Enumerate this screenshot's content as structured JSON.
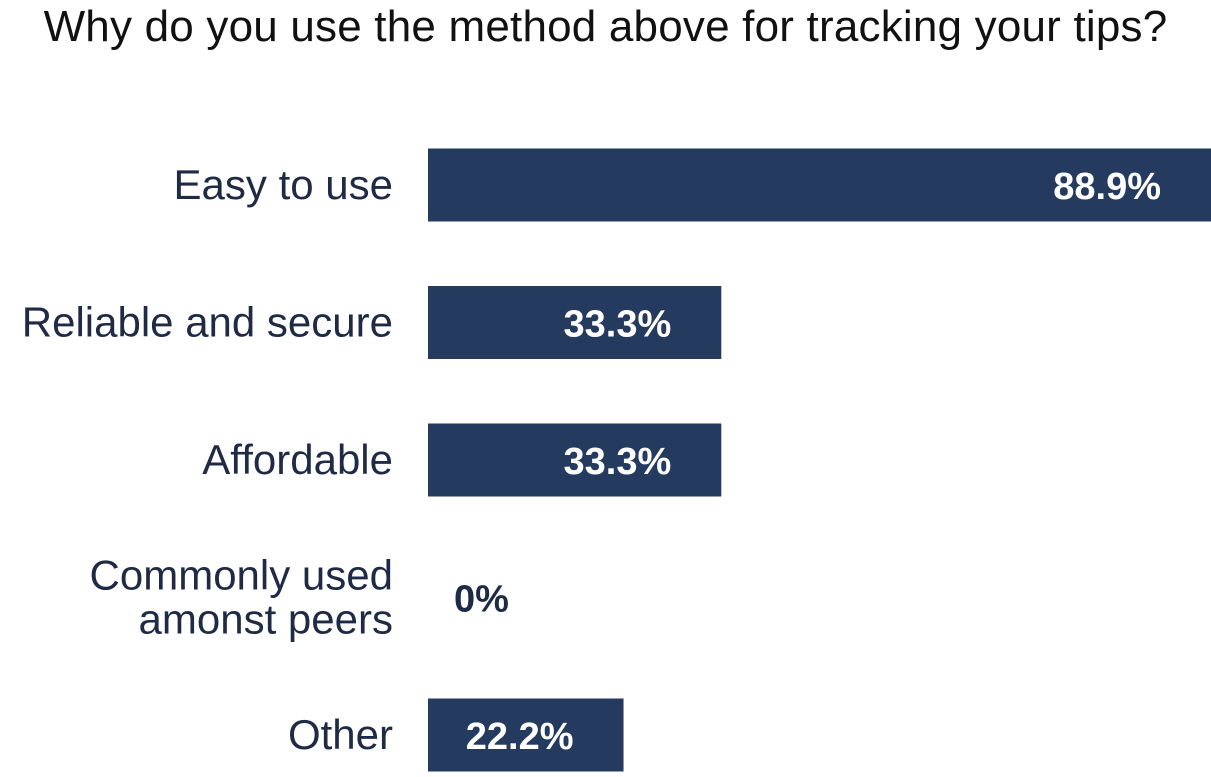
{
  "chart_data": {
    "type": "bar",
    "orientation": "horizontal",
    "title": "Why do you use the method above for tracking your tips?",
    "categories": [
      [
        "Easy to use"
      ],
      [
        "Reliable and secure"
      ],
      [
        "Affordable"
      ],
      [
        "Commonly used",
        "amonst peers"
      ],
      [
        "Other"
      ]
    ],
    "values": [
      88.9,
      33.3,
      33.3,
      0,
      22.2
    ],
    "value_labels": [
      "88.9%",
      "33.3%",
      "33.3%",
      "0%",
      "22.2%"
    ],
    "xlim": [
      0,
      88.9
    ],
    "unit": "%",
    "grid": false,
    "legend": "none",
    "bar_color": "#243a5e",
    "label_color": "#1f2a44"
  }
}
